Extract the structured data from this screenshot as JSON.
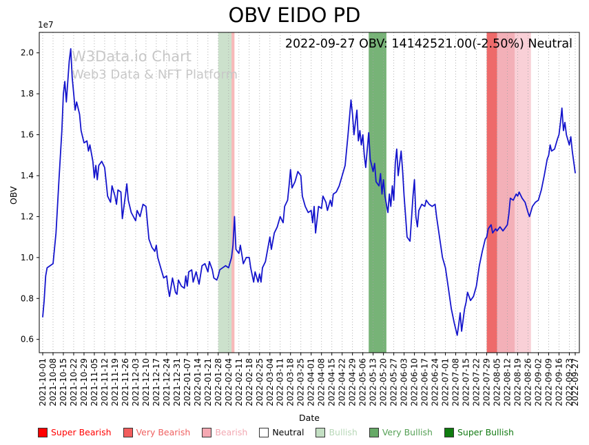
{
  "title": "OBV EIDO PD",
  "annotation": "2022-09-27 OBV: 14142521.00(-2.50%) Neutral",
  "watermark": {
    "line1": "W3Data.io Chart",
    "line2": "Web3 Data & NFT Platform"
  },
  "chart_data": {
    "type": "line",
    "title": "OBV EIDO PD",
    "xlabel": "Date",
    "ylabel": "OBV",
    "y_offset_label": "1e7",
    "y_multiplier": 10000000,
    "y_ticks": [
      0.6,
      0.8,
      1.0,
      1.2,
      1.4,
      1.6,
      1.8,
      2.0
    ],
    "ylim": [
      0.535,
      2.1
    ],
    "grid": {
      "x": true,
      "y": false,
      "style": "dotted"
    },
    "x_start_date": "2021-10-01",
    "x_end_date": "2022-09-27",
    "x_tick_labels": [
      "2021-10-01",
      "2021-10-08",
      "2021-10-15",
      "2021-10-22",
      "2021-10-29",
      "2021-11-05",
      "2021-11-12",
      "2021-11-19",
      "2021-11-26",
      "2021-12-03",
      "2021-12-10",
      "2021-12-17",
      "2021-12-24",
      "2021-12-31",
      "2022-01-07",
      "2022-01-14",
      "2022-01-21",
      "2022-01-28",
      "2022-02-04",
      "2022-02-11",
      "2022-02-18",
      "2022-02-25",
      "2022-03-04",
      "2022-03-11",
      "2022-03-18",
      "2022-03-25",
      "2022-04-01",
      "2022-04-08",
      "2022-04-15",
      "2022-04-22",
      "2022-04-29",
      "2022-05-06",
      "2022-05-13",
      "2022-05-20",
      "2022-05-27",
      "2022-06-03",
      "2022-06-10",
      "2022-06-17",
      "2022-06-24",
      "2022-07-01",
      "2022-07-08",
      "2022-07-15",
      "2022-07-22",
      "2022-07-29",
      "2022-08-05",
      "2022-08-12",
      "2022-08-19",
      "2022-08-26",
      "2022-09-02",
      "2022-09-09",
      "2022-09-16",
      "2022-09-23",
      "2022-09-27"
    ],
    "bands": [
      {
        "label": "Bullish",
        "start": "2022-01-28",
        "end": "2022-02-06",
        "color": "#8fbc8f",
        "opacity": 0.45
      },
      {
        "label": "Bearish",
        "start": "2022-02-06",
        "end": "2022-02-08",
        "color": "#f08080",
        "opacity": 0.55
      },
      {
        "label": "Very Bullish",
        "start": "2022-05-10",
        "end": "2022-05-22",
        "color": "#2e8b2e",
        "opacity": 0.65
      },
      {
        "label": "Very Bearish",
        "start": "2022-07-29",
        "end": "2022-08-05",
        "color": "#e83030",
        "opacity": 0.72
      },
      {
        "label": "Bearish",
        "start": "2022-08-05",
        "end": "2022-08-17",
        "color": "#ec7f8c",
        "opacity": 0.62
      },
      {
        "label": "Bearish",
        "start": "2022-08-17",
        "end": "2022-08-28",
        "color": "#f4aab6",
        "opacity": 0.55
      }
    ],
    "series": [
      {
        "name": "OBV",
        "color": "#1414cc",
        "x_unit": "days since 2021-10-01",
        "points": [
          [
            0,
            0.71
          ],
          [
            1,
            0.79
          ],
          [
            2,
            0.91
          ],
          [
            3,
            0.95
          ],
          [
            5,
            0.96
          ],
          [
            7,
            0.97
          ],
          [
            9,
            1.12
          ],
          [
            11,
            1.38
          ],
          [
            13,
            1.62
          ],
          [
            14,
            1.8
          ],
          [
            15,
            1.86
          ],
          [
            16,
            1.76
          ],
          [
            18,
            1.96
          ],
          [
            19,
            2.02
          ],
          [
            20,
            1.88
          ],
          [
            21,
            1.8
          ],
          [
            22,
            1.72
          ],
          [
            23,
            1.76
          ],
          [
            25,
            1.7
          ],
          [
            26,
            1.62
          ],
          [
            28,
            1.56
          ],
          [
            30,
            1.57
          ],
          [
            31,
            1.52
          ],
          [
            32,
            1.55
          ],
          [
            34,
            1.47
          ],
          [
            35,
            1.39
          ],
          [
            36,
            1.45
          ],
          [
            37,
            1.38
          ],
          [
            38,
            1.45
          ],
          [
            40,
            1.47
          ],
          [
            42,
            1.44
          ],
          [
            43,
            1.37
          ],
          [
            44,
            1.3
          ],
          [
            46,
            1.27
          ],
          [
            47,
            1.35
          ],
          [
            49,
            1.3
          ],
          [
            50,
            1.26
          ],
          [
            51,
            1.33
          ],
          [
            53,
            1.32
          ],
          [
            54,
            1.19
          ],
          [
            56,
            1.3
          ],
          [
            57,
            1.36
          ],
          [
            58,
            1.28
          ],
          [
            60,
            1.22
          ],
          [
            63,
            1.18
          ],
          [
            64,
            1.23
          ],
          [
            66,
            1.2
          ],
          [
            68,
            1.26
          ],
          [
            70,
            1.25
          ],
          [
            71,
            1.17
          ],
          [
            72,
            1.09
          ],
          [
            74,
            1.05
          ],
          [
            76,
            1.03
          ],
          [
            77,
            1.06
          ],
          [
            78,
            1.0
          ],
          [
            80,
            0.95
          ],
          [
            82,
            0.9
          ],
          [
            84,
            0.91
          ],
          [
            85,
            0.85
          ],
          [
            86,
            0.81
          ],
          [
            88,
            0.9
          ],
          [
            90,
            0.83
          ],
          [
            91,
            0.82
          ],
          [
            92,
            0.89
          ],
          [
            94,
            0.86
          ],
          [
            96,
            0.85
          ],
          [
            97,
            0.91
          ],
          [
            98,
            0.86
          ],
          [
            99,
            0.93
          ],
          [
            101,
            0.94
          ],
          [
            102,
            0.88
          ],
          [
            104,
            0.93
          ],
          [
            105,
            0.9
          ],
          [
            106,
            0.87
          ],
          [
            108,
            0.96
          ],
          [
            110,
            0.97
          ],
          [
            112,
            0.93
          ],
          [
            113,
            0.98
          ],
          [
            115,
            0.94
          ],
          [
            116,
            0.9
          ],
          [
            118,
            0.89
          ],
          [
            119,
            0.91
          ],
          [
            120,
            0.94
          ],
          [
            122,
            0.95
          ],
          [
            124,
            0.96
          ],
          [
            126,
            0.95
          ],
          [
            128,
            1.0
          ],
          [
            129,
            1.06
          ],
          [
            130,
            1.2
          ],
          [
            131,
            1.04
          ],
          [
            133,
            1.02
          ],
          [
            134,
            1.06
          ],
          [
            136,
            0.97
          ],
          [
            138,
            1.0
          ],
          [
            140,
            1.0
          ],
          [
            141,
            0.95
          ],
          [
            143,
            0.88
          ],
          [
            144,
            0.93
          ],
          [
            146,
            0.88
          ],
          [
            147,
            0.92
          ],
          [
            148,
            0.88
          ],
          [
            149,
            0.95
          ],
          [
            151,
            0.98
          ],
          [
            153,
            1.06
          ],
          [
            154,
            1.1
          ],
          [
            155,
            1.04
          ],
          [
            157,
            1.12
          ],
          [
            159,
            1.15
          ],
          [
            161,
            1.2
          ],
          [
            163,
            1.17
          ],
          [
            164,
            1.25
          ],
          [
            166,
            1.28
          ],
          [
            167,
            1.35
          ],
          [
            168,
            1.43
          ],
          [
            169,
            1.34
          ],
          [
            171,
            1.37
          ],
          [
            173,
            1.42
          ],
          [
            175,
            1.4
          ],
          [
            176,
            1.3
          ],
          [
            178,
            1.25
          ],
          [
            180,
            1.22
          ],
          [
            182,
            1.23
          ],
          [
            183,
            1.17
          ],
          [
            184,
            1.25
          ],
          [
            185,
            1.12
          ],
          [
            187,
            1.25
          ],
          [
            189,
            1.24
          ],
          [
            190,
            1.3
          ],
          [
            192,
            1.27
          ],
          [
            193,
            1.23
          ],
          [
            195,
            1.28
          ],
          [
            196,
            1.25
          ],
          [
            197,
            1.31
          ],
          [
            199,
            1.32
          ],
          [
            201,
            1.35
          ],
          [
            203,
            1.4
          ],
          [
            205,
            1.45
          ],
          [
            207,
            1.6
          ],
          [
            209,
            1.77
          ],
          [
            210,
            1.7
          ],
          [
            211,
            1.6
          ],
          [
            213,
            1.72
          ],
          [
            214,
            1.57
          ],
          [
            215,
            1.62
          ],
          [
            216,
            1.55
          ],
          [
            217,
            1.6
          ],
          [
            218,
            1.5
          ],
          [
            219,
            1.44
          ],
          [
            221,
            1.61
          ],
          [
            222,
            1.48
          ],
          [
            224,
            1.42
          ],
          [
            225,
            1.46
          ],
          [
            226,
            1.37
          ],
          [
            228,
            1.35
          ],
          [
            229,
            1.41
          ],
          [
            230,
            1.31
          ],
          [
            231,
            1.38
          ],
          [
            232,
            1.3
          ],
          [
            234,
            1.22
          ],
          [
            235,
            1.31
          ],
          [
            236,
            1.25
          ],
          [
            237,
            1.35
          ],
          [
            238,
            1.28
          ],
          [
            239,
            1.46
          ],
          [
            240,
            1.53
          ],
          [
            241,
            1.4
          ],
          [
            243,
            1.52
          ],
          [
            244,
            1.42
          ],
          [
            245,
            1.3
          ],
          [
            246,
            1.2
          ],
          [
            247,
            1.1
          ],
          [
            249,
            1.08
          ],
          [
            251,
            1.3
          ],
          [
            252,
            1.38
          ],
          [
            253,
            1.2
          ],
          [
            254,
            1.15
          ],
          [
            255,
            1.23
          ],
          [
            257,
            1.26
          ],
          [
            259,
            1.25
          ],
          [
            260,
            1.28
          ],
          [
            262,
            1.26
          ],
          [
            264,
            1.25
          ],
          [
            266,
            1.26
          ],
          [
            267,
            1.2
          ],
          [
            269,
            1.1
          ],
          [
            271,
            1.0
          ],
          [
            273,
            0.95
          ],
          [
            275,
            0.85
          ],
          [
            277,
            0.75
          ],
          [
            279,
            0.68
          ],
          [
            281,
            0.62
          ],
          [
            282,
            0.67
          ],
          [
            283,
            0.73
          ],
          [
            284,
            0.64
          ],
          [
            286,
            0.75
          ],
          [
            287,
            0.78
          ],
          [
            288,
            0.83
          ],
          [
            290,
            0.79
          ],
          [
            292,
            0.81
          ],
          [
            294,
            0.86
          ],
          [
            296,
            0.96
          ],
          [
            298,
            1.03
          ],
          [
            300,
            1.09
          ],
          [
            301,
            1.1
          ],
          [
            302,
            1.14
          ],
          [
            304,
            1.16
          ],
          [
            305,
            1.12
          ],
          [
            307,
            1.14
          ],
          [
            308,
            1.13
          ],
          [
            310,
            1.15
          ],
          [
            312,
            1.13
          ],
          [
            314,
            1.15
          ],
          [
            315,
            1.16
          ],
          [
            316,
            1.21
          ],
          [
            317,
            1.29
          ],
          [
            319,
            1.28
          ],
          [
            321,
            1.31
          ],
          [
            322,
            1.3
          ],
          [
            323,
            1.32
          ],
          [
            325,
            1.29
          ],
          [
            327,
            1.27
          ],
          [
            329,
            1.22
          ],
          [
            330,
            1.2
          ],
          [
            332,
            1.25
          ],
          [
            334,
            1.27
          ],
          [
            336,
            1.28
          ],
          [
            338,
            1.33
          ],
          [
            340,
            1.4
          ],
          [
            342,
            1.48
          ],
          [
            343,
            1.5
          ],
          [
            344,
            1.55
          ],
          [
            345,
            1.52
          ],
          [
            347,
            1.53
          ],
          [
            349,
            1.58
          ],
          [
            350,
            1.6
          ],
          [
            351,
            1.66
          ],
          [
            352,
            1.73
          ],
          [
            353,
            1.62
          ],
          [
            354,
            1.66
          ],
          [
            355,
            1.6
          ],
          [
            357,
            1.55
          ],
          [
            358,
            1.59
          ],
          [
            359,
            1.52
          ],
          [
            361,
            1.414
          ]
        ]
      }
    ]
  },
  "legend": [
    {
      "label": "Super Bearish",
      "color": "#ff0000",
      "text_color": "#ff0000"
    },
    {
      "label": "Very Bearish",
      "color": "#f25d5d",
      "text_color": "#ef6060"
    },
    {
      "label": "Bearish",
      "color": "#f5a8b2",
      "text_color": "#f2a8b2"
    },
    {
      "label": "Neutral",
      "color": "#ffffff",
      "text_color": "#000000"
    },
    {
      "label": "Bullish",
      "color": "#c3dfc3",
      "text_color": "#b8d8b8"
    },
    {
      "label": "Very Bullish",
      "color": "#67aa67",
      "text_color": "#55a055"
    },
    {
      "label": "Super Bullish",
      "color": "#0f7c0f",
      "text_color": "#127a12"
    }
  ]
}
